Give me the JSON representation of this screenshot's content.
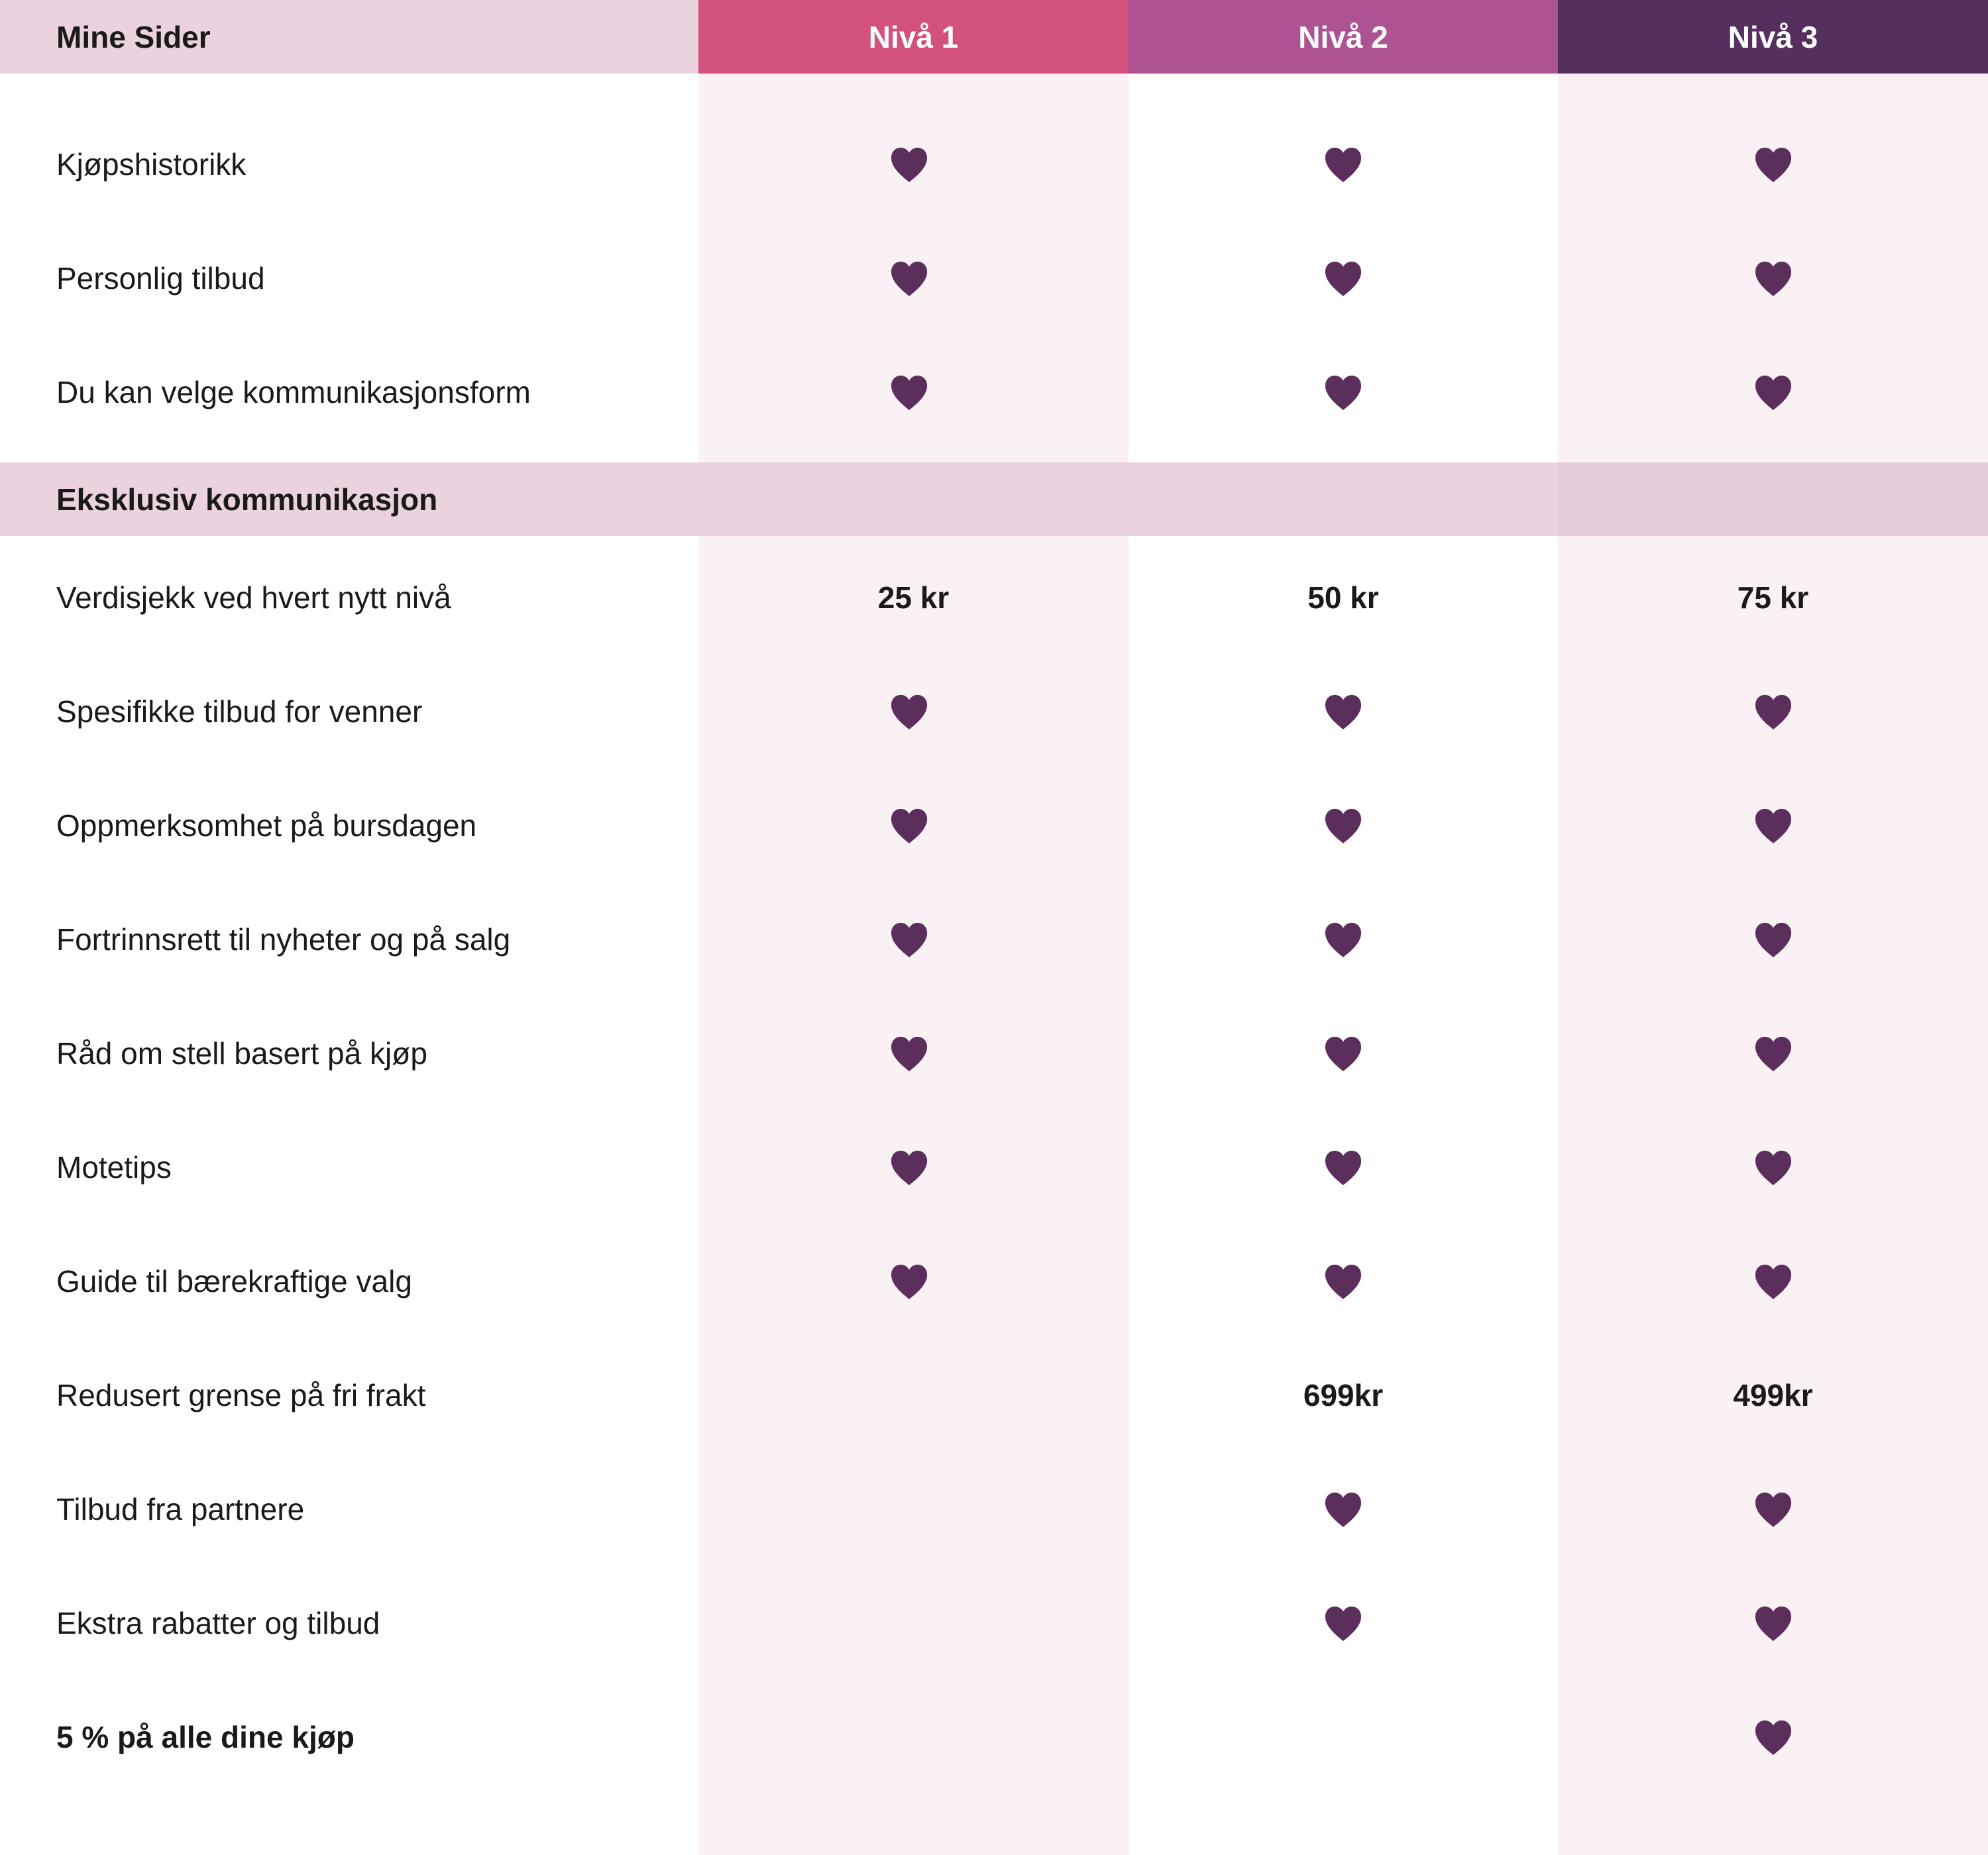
{
  "header": {
    "section_label": "Mine Sider",
    "levels": [
      "Nivå 1",
      "Nivå 2",
      "Nivå 3"
    ]
  },
  "colors": {
    "level1": "#d2527d",
    "level2": "#ad5394",
    "level3": "#552f5e",
    "section_bg": "#ead2df",
    "column_tint": "#f9f1f4",
    "heart": "#5b2e5c"
  },
  "icon": "heart-icon",
  "sections": [
    {
      "title": "Mine Sider",
      "rows": [
        {
          "label": "Kjøpshistorikk",
          "values": [
            "heart",
            "heart",
            "heart"
          ]
        },
        {
          "label": "Personlig tilbud",
          "values": [
            "heart",
            "heart",
            "heart"
          ]
        },
        {
          "label": "Du kan velge kommunikasjonsform",
          "values": [
            "heart",
            "heart",
            "heart"
          ]
        }
      ]
    },
    {
      "title": "Eksklusiv kommunikasjon",
      "rows": [
        {
          "label": "Verdisjekk ved hvert nytt nivå",
          "values": [
            "25 kr",
            "50 kr",
            "75 kr"
          ]
        },
        {
          "label": "Spesifikke tilbud for venner",
          "values": [
            "heart",
            "heart",
            "heart"
          ]
        },
        {
          "label": "Oppmerksomhet på bursdagen",
          "values": [
            "heart",
            "heart",
            "heart"
          ]
        },
        {
          "label": "Fortrinnsrett til nyheter og på salg",
          "values": [
            "heart",
            "heart",
            "heart"
          ]
        },
        {
          "label": "Råd om stell basert på kjøp",
          "values": [
            "heart",
            "heart",
            "heart"
          ]
        },
        {
          "label": "Motetips",
          "values": [
            "heart",
            "heart",
            "heart"
          ]
        },
        {
          "label": "Guide til bærekraftige valg",
          "values": [
            "heart",
            "heart",
            "heart"
          ]
        },
        {
          "label": "Redusert grense på fri frakt",
          "values": [
            "",
            "699kr",
            "499kr"
          ]
        },
        {
          "label": "Tilbud fra partnere",
          "values": [
            "",
            "heart",
            "heart"
          ]
        },
        {
          "label": "Ekstra rabatter og tilbud",
          "values": [
            "",
            "heart",
            "heart"
          ]
        },
        {
          "label": "5 % på alle dine kjøp",
          "values": [
            "",
            "",
            "heart"
          ],
          "bold": true
        }
      ]
    }
  ]
}
